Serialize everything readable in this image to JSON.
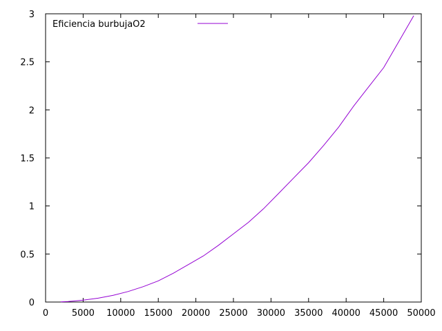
{
  "chart_data": {
    "type": "line",
    "title": "",
    "xlabel": "",
    "ylabel": "",
    "xlim": [
      0,
      50000
    ],
    "ylim": [
      0,
      3
    ],
    "x_ticks": [
      0,
      5000,
      10000,
      15000,
      20000,
      25000,
      30000,
      35000,
      40000,
      45000,
      50000
    ],
    "y_ticks": [
      0,
      0.5,
      1,
      1.5,
      2,
      2.5,
      3
    ],
    "x_tick_labels": [
      "0",
      "5000",
      "10000",
      "15000",
      "20000",
      "25000",
      "30000",
      "35000",
      "40000",
      "45000",
      "50000"
    ],
    "y_tick_labels": [
      "0",
      "0.5",
      "1",
      "1.5",
      "2",
      "2.5",
      "3"
    ],
    "grid": false,
    "legend_position": "top-left",
    "series": [
      {
        "name": "Eficiencia burbujaO2",
        "color": "#9400d3",
        "x": [
          2000,
          3000,
          5000,
          7000,
          9000,
          11000,
          13000,
          15000,
          17000,
          19000,
          21000,
          23000,
          25000,
          27000,
          29000,
          31000,
          33000,
          35000,
          37000,
          39000,
          41000,
          43000,
          45000,
          47000,
          49000
        ],
        "y": [
          0.002,
          0.006,
          0.02,
          0.04,
          0.07,
          0.11,
          0.16,
          0.22,
          0.3,
          0.39,
          0.48,
          0.59,
          0.71,
          0.83,
          0.97,
          1.13,
          1.29,
          1.45,
          1.63,
          1.82,
          2.04,
          2.24,
          2.44,
          2.71,
          2.98
        ]
      }
    ]
  }
}
